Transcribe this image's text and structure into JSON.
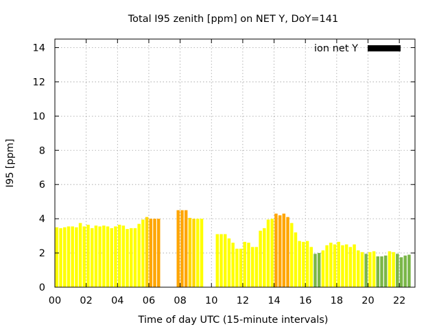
{
  "chart_data": {
    "type": "bar",
    "title": "Total I95 zenith [ppm] on NET Y, DoY=141",
    "xlabel": "Time of day UTC (15-minute intervals)",
    "ylabel": "I95 [ppm]",
    "xlim": [
      0,
      23
    ],
    "ylim": [
      0,
      14.5
    ],
    "yticks": [
      0,
      2,
      4,
      6,
      8,
      10,
      12,
      14
    ],
    "yticklabels": [
      "0",
      "2",
      "4",
      "6",
      "8",
      "10",
      "12",
      "14"
    ],
    "xticks": [
      0,
      2,
      4,
      6,
      8,
      10,
      12,
      14,
      16,
      18,
      20,
      22
    ],
    "xticklabels": [
      "00",
      "02",
      "04",
      "06",
      "08",
      "10",
      "12",
      "14",
      "16",
      "18",
      "20",
      "22"
    ],
    "grid": true,
    "legend": {
      "label": "ion net Y",
      "placement": "top-right",
      "color": "#000000"
    },
    "bar_width_hours": 0.25,
    "colors": {
      "yellow": "#ffff00",
      "gold": "#ffd700",
      "orange": "#ffa500",
      "green": "#7ab648",
      "frame": "#000000",
      "grid": "#a0a0a0"
    },
    "bars": [
      {
        "x": 0.0,
        "value": 3.5,
        "color": "yellow"
      },
      {
        "x": 0.25,
        "value": 3.45,
        "color": "yellow"
      },
      {
        "x": 0.5,
        "value": 3.5,
        "color": "yellow"
      },
      {
        "x": 0.75,
        "value": 3.55,
        "color": "yellow"
      },
      {
        "x": 1.0,
        "value": 3.55,
        "color": "yellow"
      },
      {
        "x": 1.25,
        "value": 3.5,
        "color": "yellow"
      },
      {
        "x": 1.5,
        "value": 3.75,
        "color": "yellow"
      },
      {
        "x": 1.75,
        "value": 3.55,
        "color": "yellow"
      },
      {
        "x": 2.0,
        "value": 3.65,
        "color": "yellow"
      },
      {
        "x": 2.25,
        "value": 3.45,
        "color": "yellow"
      },
      {
        "x": 2.5,
        "value": 3.6,
        "color": "yellow"
      },
      {
        "x": 2.75,
        "value": 3.55,
        "color": "yellow"
      },
      {
        "x": 3.0,
        "value": 3.6,
        "color": "yellow"
      },
      {
        "x": 3.25,
        "value": 3.55,
        "color": "yellow"
      },
      {
        "x": 3.5,
        "value": 3.45,
        "color": "yellow"
      },
      {
        "x": 3.75,
        "value": 3.55,
        "color": "yellow"
      },
      {
        "x": 4.0,
        "value": 3.65,
        "color": "yellow"
      },
      {
        "x": 4.25,
        "value": 3.6,
        "color": "yellow"
      },
      {
        "x": 4.5,
        "value": 3.4,
        "color": "yellow"
      },
      {
        "x": 4.75,
        "value": 3.45,
        "color": "yellow"
      },
      {
        "x": 5.0,
        "value": 3.45,
        "color": "yellow"
      },
      {
        "x": 5.25,
        "value": 3.7,
        "color": "yellow"
      },
      {
        "x": 5.5,
        "value": 3.95,
        "color": "yellow"
      },
      {
        "x": 5.75,
        "value": 4.1,
        "color": "gold"
      },
      {
        "x": 6.0,
        "value": 4.0,
        "color": "orange"
      },
      {
        "x": 6.25,
        "value": 4.0,
        "color": "orange"
      },
      {
        "x": 6.5,
        "value": 4.0,
        "color": "orange"
      },
      {
        "x": 7.75,
        "value": 4.5,
        "color": "orange"
      },
      {
        "x": 8.0,
        "value": 4.5,
        "color": "orange"
      },
      {
        "x": 8.25,
        "value": 4.5,
        "color": "orange"
      },
      {
        "x": 8.5,
        "value": 4.05,
        "color": "gold"
      },
      {
        "x": 8.75,
        "value": 4.0,
        "color": "gold"
      },
      {
        "x": 9.0,
        "value": 4.0,
        "color": "yellow"
      },
      {
        "x": 9.25,
        "value": 4.0,
        "color": "yellow"
      },
      {
        "x": 10.25,
        "value": 3.1,
        "color": "yellow"
      },
      {
        "x": 10.5,
        "value": 3.1,
        "color": "yellow"
      },
      {
        "x": 10.75,
        "value": 3.1,
        "color": "yellow"
      },
      {
        "x": 11.0,
        "value": 2.85,
        "color": "yellow"
      },
      {
        "x": 11.25,
        "value": 2.6,
        "color": "yellow"
      },
      {
        "x": 11.5,
        "value": 2.25,
        "color": "yellow"
      },
      {
        "x": 11.75,
        "value": 2.25,
        "color": "yellow"
      },
      {
        "x": 12.0,
        "value": 2.65,
        "color": "yellow"
      },
      {
        "x": 12.25,
        "value": 2.6,
        "color": "yellow"
      },
      {
        "x": 12.5,
        "value": 2.35,
        "color": "yellow"
      },
      {
        "x": 12.75,
        "value": 2.35,
        "color": "yellow"
      },
      {
        "x": 13.0,
        "value": 3.3,
        "color": "yellow"
      },
      {
        "x": 13.25,
        "value": 3.45,
        "color": "yellow"
      },
      {
        "x": 13.5,
        "value": 3.95,
        "color": "yellow"
      },
      {
        "x": 13.75,
        "value": 4.0,
        "color": "yellow"
      },
      {
        "x": 14.0,
        "value": 4.3,
        "color": "orange"
      },
      {
        "x": 14.25,
        "value": 4.2,
        "color": "orange"
      },
      {
        "x": 14.5,
        "value": 4.3,
        "color": "orange"
      },
      {
        "x": 14.75,
        "value": 4.1,
        "color": "orange"
      },
      {
        "x": 15.0,
        "value": 3.75,
        "color": "yellow"
      },
      {
        "x": 15.25,
        "value": 3.2,
        "color": "yellow"
      },
      {
        "x": 15.5,
        "value": 2.7,
        "color": "yellow"
      },
      {
        "x": 15.75,
        "value": 2.65,
        "color": "yellow"
      },
      {
        "x": 16.0,
        "value": 2.7,
        "color": "yellow"
      },
      {
        "x": 16.25,
        "value": 2.35,
        "color": "yellow"
      },
      {
        "x": 16.5,
        "value": 1.95,
        "color": "green"
      },
      {
        "x": 16.75,
        "value": 2.0,
        "color": "green"
      },
      {
        "x": 17.0,
        "value": 2.15,
        "color": "yellow"
      },
      {
        "x": 17.25,
        "value": 2.45,
        "color": "yellow"
      },
      {
        "x": 17.5,
        "value": 2.6,
        "color": "yellow"
      },
      {
        "x": 17.75,
        "value": 2.5,
        "color": "yellow"
      },
      {
        "x": 18.0,
        "value": 2.65,
        "color": "yellow"
      },
      {
        "x": 18.25,
        "value": 2.45,
        "color": "yellow"
      },
      {
        "x": 18.5,
        "value": 2.5,
        "color": "yellow"
      },
      {
        "x": 18.75,
        "value": 2.35,
        "color": "yellow"
      },
      {
        "x": 19.0,
        "value": 2.5,
        "color": "yellow"
      },
      {
        "x": 19.25,
        "value": 2.15,
        "color": "yellow"
      },
      {
        "x": 19.5,
        "value": 2.05,
        "color": "yellow"
      },
      {
        "x": 19.75,
        "value": 1.95,
        "color": "green"
      },
      {
        "x": 20.0,
        "value": 2.05,
        "color": "yellow"
      },
      {
        "x": 20.25,
        "value": 2.1,
        "color": "yellow"
      },
      {
        "x": 20.5,
        "value": 1.8,
        "color": "green"
      },
      {
        "x": 20.75,
        "value": 1.8,
        "color": "green"
      },
      {
        "x": 21.0,
        "value": 1.85,
        "color": "green"
      },
      {
        "x": 21.25,
        "value": 2.1,
        "color": "yellow"
      },
      {
        "x": 21.5,
        "value": 2.05,
        "color": "yellow"
      },
      {
        "x": 21.75,
        "value": 1.95,
        "color": "green"
      },
      {
        "x": 22.0,
        "value": 1.75,
        "color": "green"
      },
      {
        "x": 22.25,
        "value": 1.85,
        "color": "green"
      },
      {
        "x": 22.5,
        "value": 1.9,
        "color": "green"
      }
    ]
  }
}
